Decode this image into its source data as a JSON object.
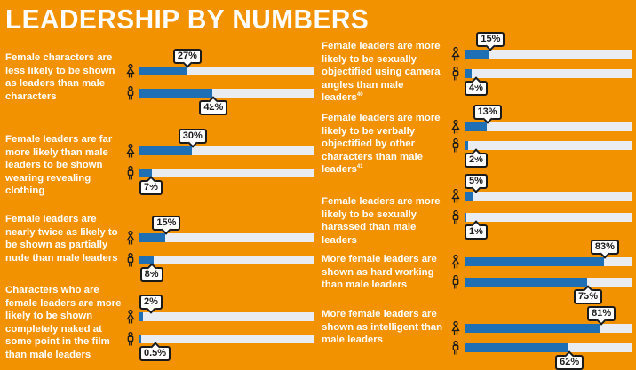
{
  "title": "LEADERSHIP BY NUMBERS",
  "colors": {
    "background": "#F39200",
    "bar_fill": "#1E6FB4",
    "bar_track": "#E9ECF0",
    "text": "#FFFFFF"
  },
  "icons": {
    "female": "female-figure-icon",
    "male": "male-figure-icon"
  },
  "chart_data": {
    "type": "bar",
    "orientation": "horizontal",
    "value_unit": "%",
    "xlim": [
      0,
      100
    ],
    "grid": false,
    "items": [
      {
        "text": "Female characters are less likely to be shown as leaders than male characters",
        "footnote": "",
        "female": {
          "value": 27,
          "label": "27%"
        },
        "male": {
          "value": 42,
          "label": "42%"
        }
      },
      {
        "text": "Female leaders are far more likely than male leaders to be shown wearing revealing clothing",
        "footnote": "",
        "female": {
          "value": 30,
          "label": "30%"
        },
        "male": {
          "value": 7,
          "label": "7%"
        }
      },
      {
        "text": "Female leaders are nearly twice as likely to be shown as partially nude than male leaders",
        "footnote": "",
        "female": {
          "value": 15,
          "label": "15%"
        },
        "male": {
          "value": 8,
          "label": "8%"
        }
      },
      {
        "text": "Characters who are female leaders are more likely to be shown completely naked at some point in the film than male leaders",
        "footnote": "",
        "female": {
          "value": 2,
          "label": "2%"
        },
        "male": {
          "value": 0.5,
          "label": "0.5%"
        }
      },
      {
        "text": "Female leaders are more likely to be sexually objectified using camera angles than male leaders",
        "footnote": "40",
        "female": {
          "value": 15,
          "label": "15%"
        },
        "male": {
          "value": 4,
          "label": "4%"
        }
      },
      {
        "text": "Female leaders are more likely to be verbally objectified by other characters than male leaders",
        "footnote": "41",
        "female": {
          "value": 13,
          "label": "13%"
        },
        "male": {
          "value": 2,
          "label": "2%"
        }
      },
      {
        "text": "Female leaders are more likely to be sexually harassed than male leaders",
        "footnote": "",
        "female": {
          "value": 5,
          "label": "5%"
        },
        "male": {
          "value": 1,
          "label": "1%"
        }
      },
      {
        "text": "More female leaders are shown as hard working than male leaders",
        "footnote": "",
        "female": {
          "value": 83,
          "label": "83%"
        },
        "male": {
          "value": 73,
          "label": "73%"
        }
      },
      {
        "text": "More female leaders are shown as intelligent than male leaders",
        "footnote": "",
        "female": {
          "value": 81,
          "label": "81%"
        },
        "male": {
          "value": 62,
          "label": "62%"
        }
      }
    ]
  }
}
